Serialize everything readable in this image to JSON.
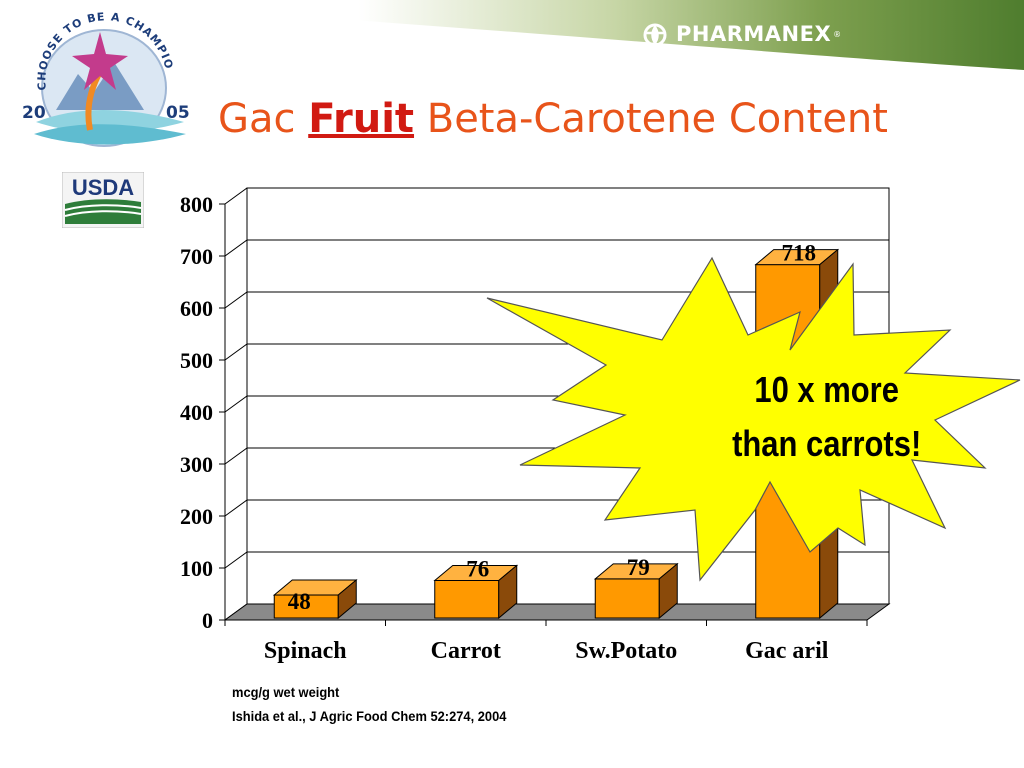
{
  "header": {
    "brand": "PHARMANEX",
    "brand_mark": "®",
    "title_pre": "Gac ",
    "title_under": "Fruit",
    "title_post": " Beta-Carotene Content"
  },
  "logo": {
    "text": "CHOOSE TO BE A CHAMPION",
    "year_left": "20",
    "year_right": "05"
  },
  "usda": {
    "text": "USDA"
  },
  "chart_data": {
    "type": "bar",
    "categories": [
      "Spinach",
      "Carrot",
      "Sw.Potato",
      "Gac aril"
    ],
    "values": [
      48,
      76,
      79,
      718
    ],
    "data_labels": [
      "48",
      "76",
      "79",
      "718"
    ],
    "ylim": [
      0,
      800
    ],
    "yticks": [
      0,
      100,
      200,
      300,
      400,
      500,
      600,
      700,
      800
    ],
    "grid": true,
    "bar_color": "#ff9900",
    "annotation": {
      "line1": "10 x more",
      "line2": "than carrots!",
      "color": "#ffff00"
    }
  },
  "footnotes": {
    "unit": "mcg/g wet weight",
    "source": "Ishida et al., J Agric Food Chem 52:274, 2004"
  }
}
